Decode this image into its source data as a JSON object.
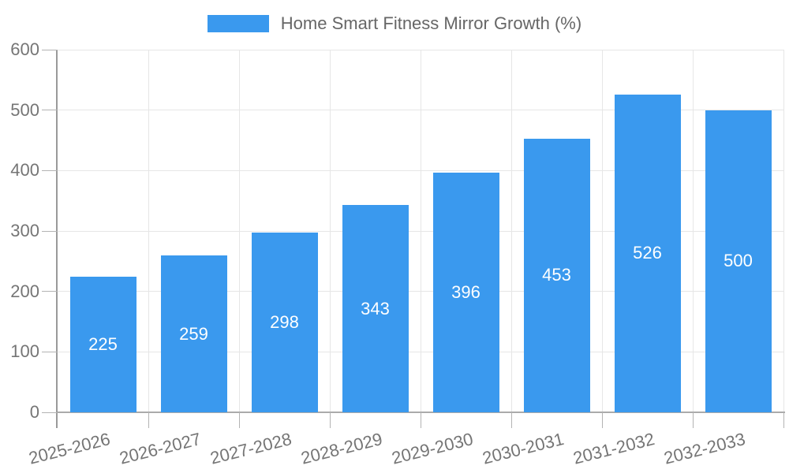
{
  "chart_data": {
    "type": "bar",
    "title": "Home Smart Fitness Mirror Growth (%)",
    "categories": [
      "2025-2026",
      "2026-2027",
      "2027-2028",
      "2028-2029",
      "2029-2030",
      "2030-2031",
      "2031-2032",
      "2032-2033"
    ],
    "values": [
      225,
      259,
      298,
      343,
      396,
      453,
      526,
      500
    ],
    "xlabel": "",
    "ylabel": "",
    "ylim": [
      0,
      600
    ],
    "yticks": [
      0,
      100,
      200,
      300,
      400,
      500,
      600
    ],
    "grid": true,
    "legend_position": "top",
    "x_label_rotation_deg": -14,
    "colors": {
      "bar": "#3a99ee",
      "bar_value_label": "#ffffff",
      "axis": "#9a9a9a",
      "bottom_axis": "#ababab",
      "gridline": "#e6e6e6",
      "tick": "#b3b3b3",
      "tick_label": "#757575",
      "legend_text": "#666666",
      "background": "#ffffff"
    }
  }
}
